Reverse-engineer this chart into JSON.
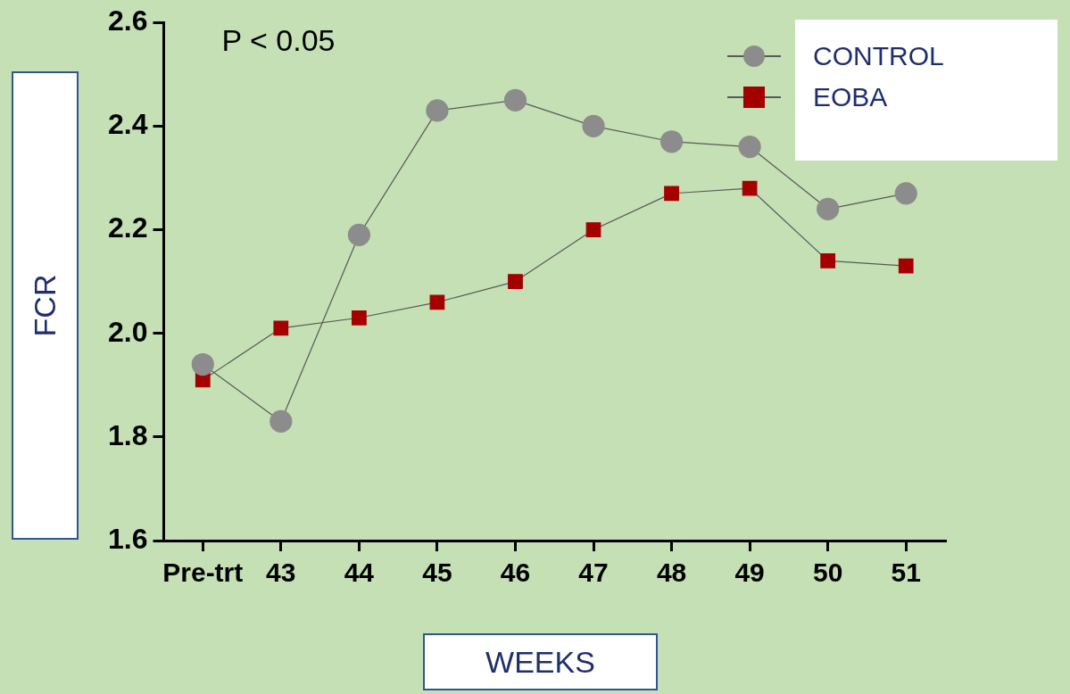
{
  "chart_data": {
    "type": "line",
    "xlabel": "WEEKS",
    "ylabel": "FCR",
    "annotations": [
      "P < 0.05"
    ],
    "categories": [
      "Pre-trt",
      "43",
      "44",
      "45",
      "46",
      "47",
      "48",
      "49",
      "50",
      "51"
    ],
    "ylim": [
      1.6,
      2.6
    ],
    "yticks": [
      1.6,
      1.8,
      {
        "value": 2,
        "label": "2.0"
      },
      2.2,
      2.4,
      2.6
    ],
    "legend": "top right",
    "line_style": "solid",
    "series": [
      {
        "name": "CONTROL",
        "color": "#8c8c8c",
        "marker": "circle",
        "values": [
          1.94,
          1.83,
          2.19,
          2.43,
          2.45,
          2.4,
          2.37,
          2.36,
          2.24,
          2.27
        ]
      },
      {
        "name": "EOBA",
        "color": "#a50000",
        "marker": "square",
        "values": [
          1.91,
          2.01,
          2.03,
          2.06,
          2.1,
          2.2,
          2.27,
          2.28,
          2.14,
          2.13
        ]
      }
    ]
  }
}
